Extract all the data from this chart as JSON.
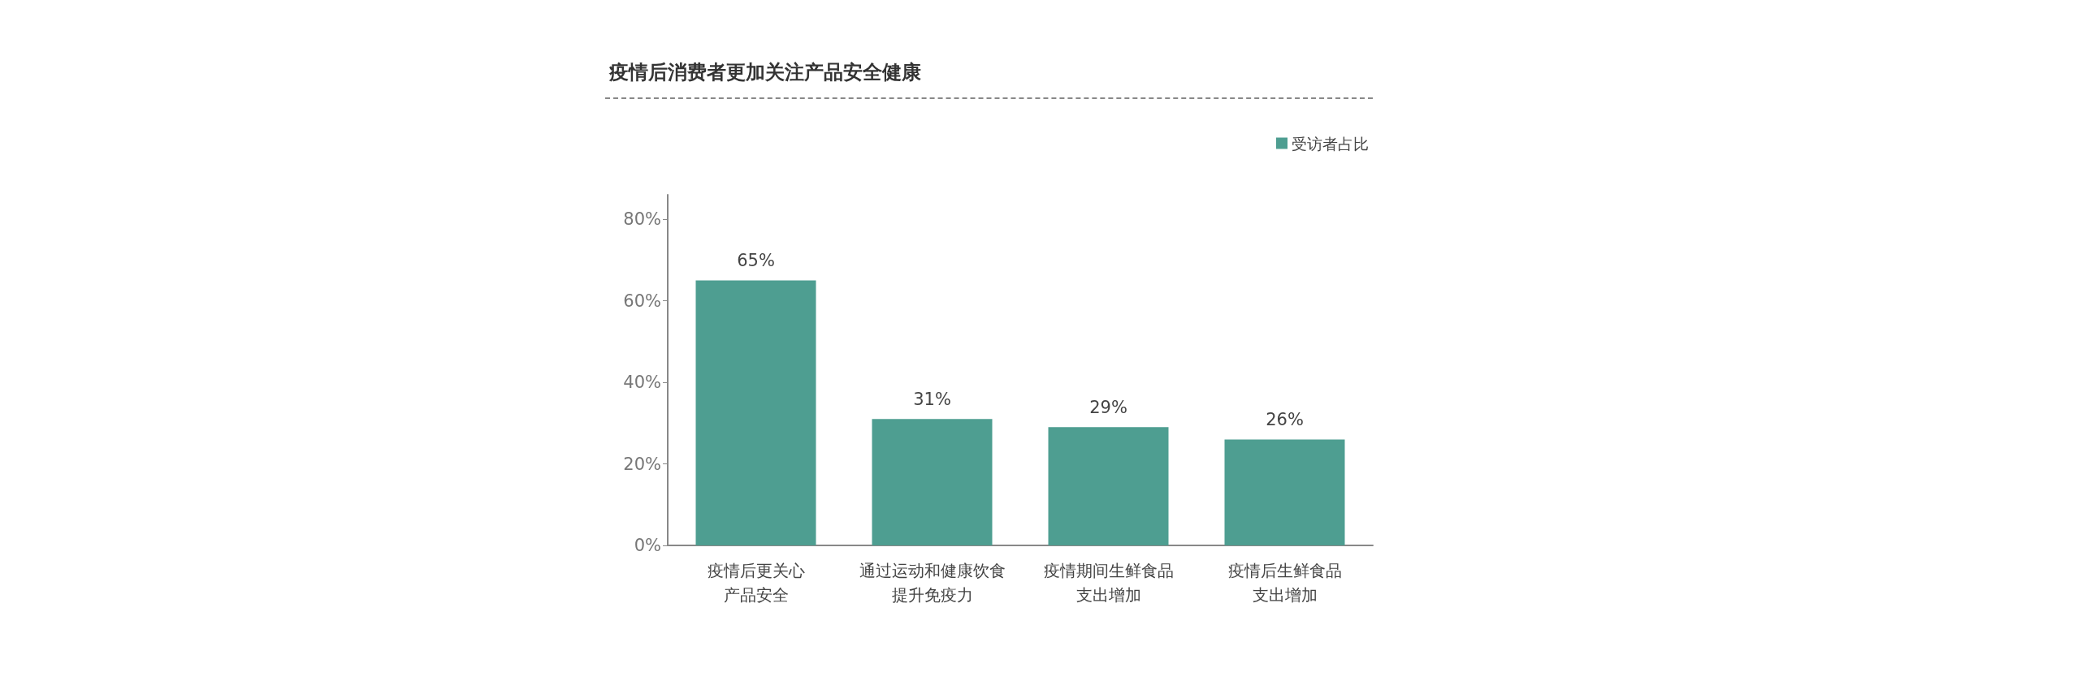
{
  "chart_data": {
    "type": "bar",
    "title": "疫情后消费者更加关注产品安全健康",
    "categories": [
      "疫情后更关心产品安全",
      "通过运动和健康饮食提升免疫力",
      "疫情期间生鲜食品支出增加",
      "疫情后生鲜食品支出增加"
    ],
    "series": [
      {
        "name": "受访者占比",
        "color": "#4e9e91",
        "values": [
          65,
          31,
          29,
          26
        ],
        "value_labels": [
          "65%",
          "31%",
          "29%",
          "26%"
        ]
      }
    ],
    "ylim": [
      0,
      86
    ],
    "yticks": [
      {
        "value": 0,
        "label": "0%"
      },
      {
        "value": 20,
        "label": "20%"
      },
      {
        "value": 40,
        "label": "40%"
      },
      {
        "value": 60,
        "label": "60%"
      },
      {
        "value": 80,
        "label": "80%"
      }
    ],
    "grid": false,
    "legend": "top right"
  }
}
